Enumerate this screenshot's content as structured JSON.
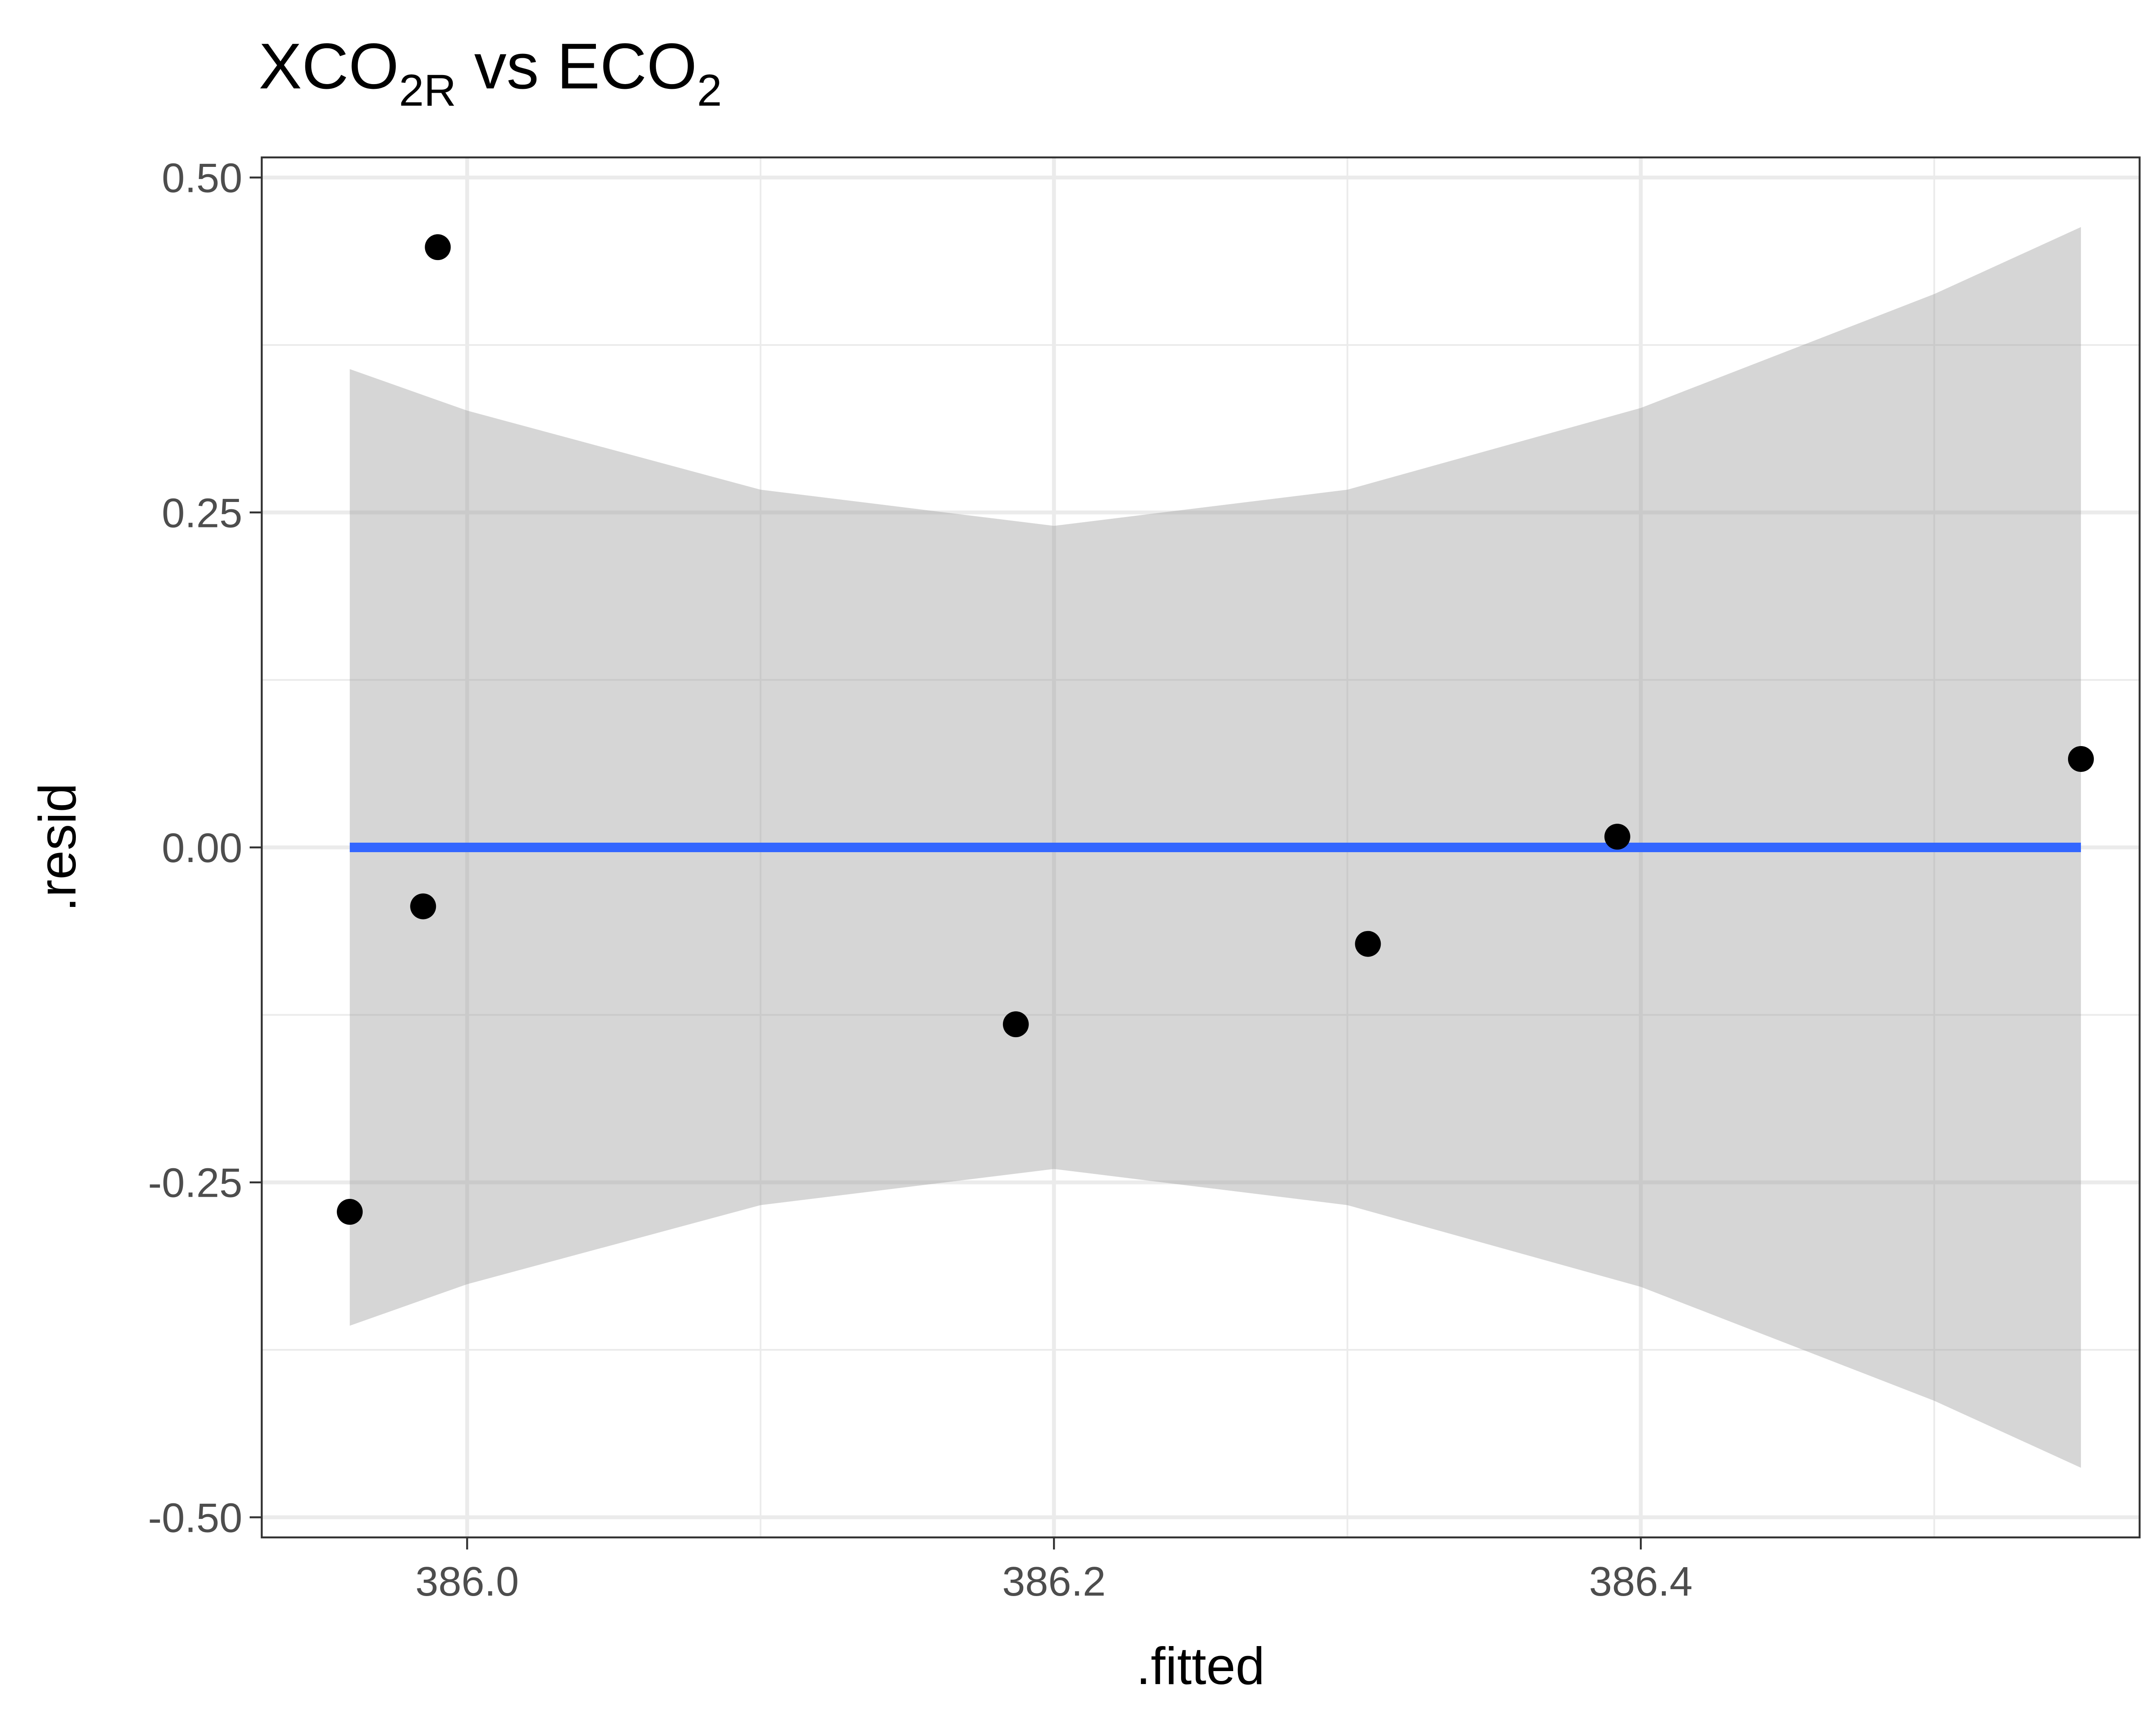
{
  "chart_data": {
    "type": "scatter",
    "title": {
      "parts": [
        {
          "text": "XCO",
          "role": "normal"
        },
        {
          "text": "2R",
          "role": "sub"
        },
        {
          "text": "  vs ECO",
          "role": "normal"
        },
        {
          "text": "2",
          "role": "sub"
        }
      ]
    },
    "xlabel": ".fitted",
    "ylabel": ".resid",
    "xlim": [
      385.93,
      386.57
    ],
    "ylim": [
      -0.515,
      0.515
    ],
    "x_major_ticks": [
      386.0,
      386.2,
      386.4
    ],
    "x_tick_labels": [
      "386.0",
      "386.2",
      "386.4"
    ],
    "x_minor_ticks": [
      386.1,
      386.3,
      386.5
    ],
    "y_major_ticks": [
      -0.5,
      -0.25,
      0.0,
      0.25,
      0.5
    ],
    "y_tick_labels": [
      "-0.50",
      "-0.25",
      "0.00",
      "0.25",
      "0.50"
    ],
    "y_minor_ticks": [
      -0.375,
      -0.125,
      0.125,
      0.375
    ],
    "grid": true,
    "points": {
      "color": "#000000",
      "x": [
        385.96,
        385.99,
        385.985,
        386.187,
        386.307,
        386.392,
        386.55
      ],
      "y": [
        -0.272,
        0.448,
        -0.044,
        -0.132,
        -0.072,
        0.008,
        0.066
      ]
    },
    "smooth": {
      "color": "#3366ff",
      "x": [
        385.96,
        386.55
      ],
      "y": [
        0.0,
        0.0
      ],
      "band_color": "#999999",
      "band_x": [
        385.96,
        386.0,
        386.1,
        386.2,
        386.3,
        386.4,
        386.5,
        386.55
      ],
      "band_upper": [
        0.357,
        0.326,
        0.267,
        0.24,
        0.267,
        0.328,
        0.413,
        0.463
      ],
      "band_lower": [
        -0.357,
        -0.326,
        -0.267,
        -0.24,
        -0.267,
        -0.328,
        -0.413,
        -0.463
      ]
    }
  }
}
